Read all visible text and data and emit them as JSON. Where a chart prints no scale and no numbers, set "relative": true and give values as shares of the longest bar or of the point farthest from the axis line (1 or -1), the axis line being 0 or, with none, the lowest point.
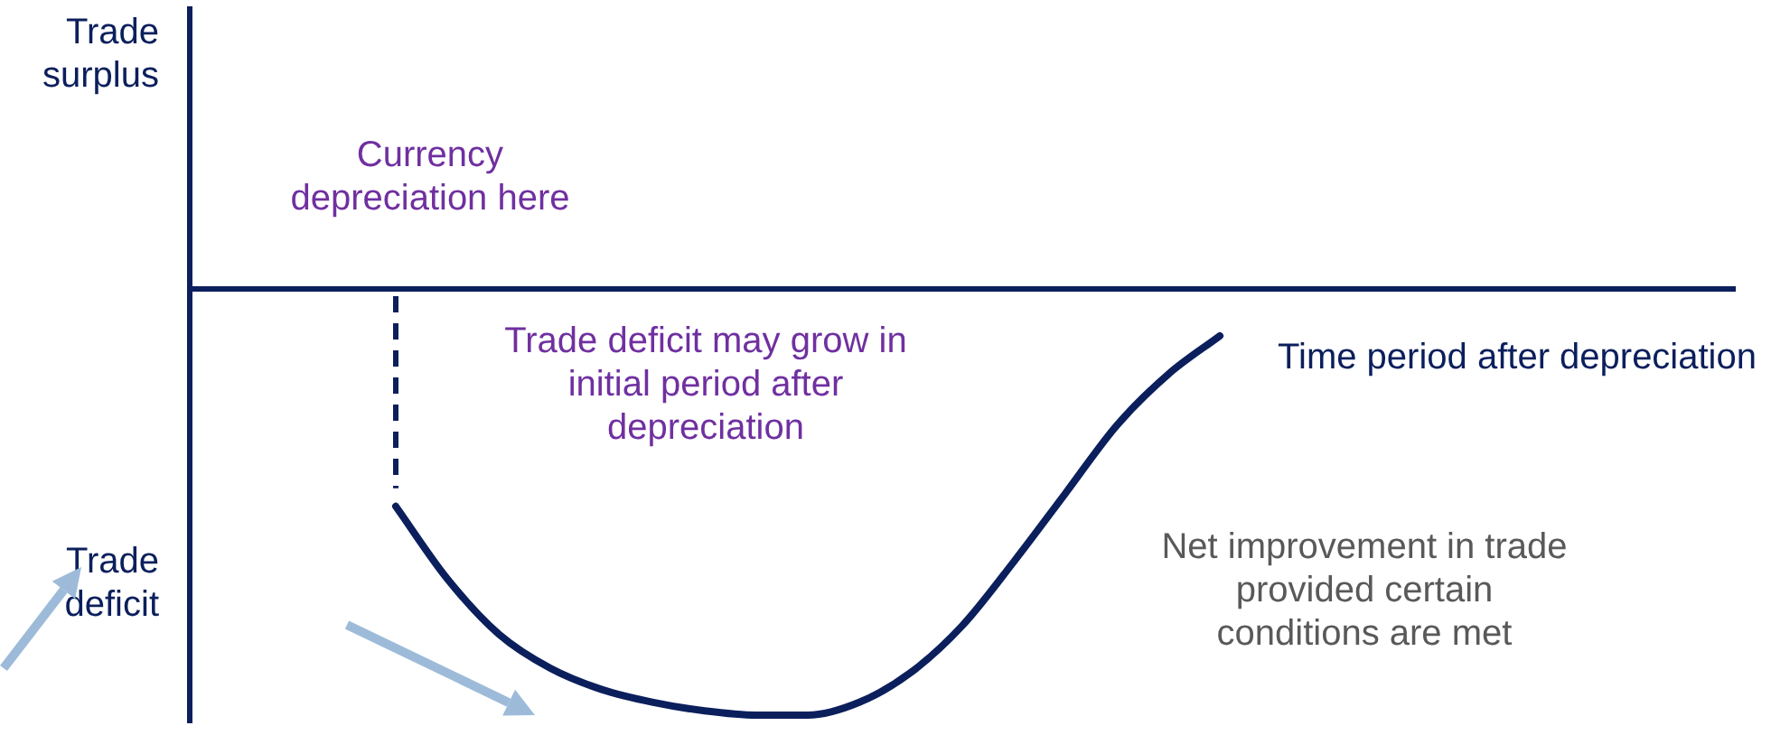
{
  "chart_data": {
    "type": "line",
    "relative": true,
    "xlabel": "Time period after depreciation",
    "categories": [
      null,
      null,
      null,
      null,
      null,
      null,
      null,
      null,
      null,
      null,
      null,
      null,
      null,
      null,
      null,
      null,
      null,
      null,
      null,
      null,
      null,
      null,
      null,
      null,
      null,
      null,
      null,
      null,
      null,
      null,
      null
    ],
    "series": [
      {
        "type": "line",
        "color": "#0b1f5c",
        "marker": "none",
        "line_style": "solid",
        "values": [
          null,
          null,
          null,
          null,
          -0.51,
          -0.68,
          -0.81,
          -0.89,
          -0.94,
          -0.97,
          -0.99,
          -1,
          -1,
          -0.97,
          -0.9,
          -0.79,
          -0.64,
          -0.48,
          -0.32,
          -0.2,
          -0.11,
          null,
          null,
          null,
          null,
          null,
          null,
          null,
          null,
          null,
          null
        ]
      }
    ],
    "annotations": [
      "Trade surplus",
      "Trade deficit",
      "Currency depreciation here",
      "Trade deficit may grow in initial period after depreciation",
      "Net improvement in trade provided certain conditions are met"
    ]
  }
}
